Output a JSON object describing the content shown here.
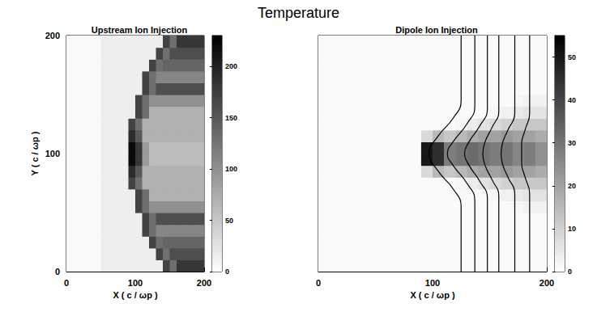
{
  "title": "Temperature",
  "chart_data": [
    {
      "type": "heatmap",
      "title": "Upstream Ion Injection",
      "x_label": "X ( c / ωp )",
      "y_label": "Y ( c / ωp )",
      "xlim": [
        0,
        200
      ],
      "ylim": [
        0,
        200
      ],
      "xticks": [
        0,
        100,
        200
      ],
      "yticks": [
        0,
        100,
        200
      ],
      "tick_labels": true,
      "x": [
        5,
        15,
        25,
        35,
        45,
        55,
        65,
        75,
        85,
        95,
        105,
        115,
        125,
        135,
        145,
        155,
        165,
        175,
        185,
        195
      ],
      "y": [
        5,
        15,
        25,
        35,
        45,
        55,
        65,
        75,
        85,
        95,
        105,
        115,
        125,
        135,
        145,
        155,
        165,
        175,
        185,
        195
      ],
      "cells": [
        [
          5,
          5,
          5,
          5,
          5,
          15,
          15,
          15,
          15,
          15,
          15,
          15,
          15,
          15,
          170,
          130,
          180,
          180,
          180,
          180
        ],
        [
          5,
          5,
          5,
          5,
          5,
          15,
          15,
          15,
          15,
          15,
          15,
          15,
          15,
          170,
          130,
          160,
          160,
          160,
          160,
          160
        ],
        [
          5,
          5,
          5,
          5,
          5,
          15,
          15,
          15,
          15,
          15,
          15,
          15,
          170,
          130,
          140,
          140,
          140,
          140,
          140,
          140
        ],
        [
          5,
          5,
          5,
          5,
          5,
          15,
          15,
          15,
          15,
          15,
          15,
          170,
          130,
          110,
          110,
          110,
          110,
          110,
          110,
          110
        ],
        [
          5,
          5,
          5,
          5,
          5,
          15,
          15,
          15,
          15,
          15,
          15,
          170,
          130,
          160,
          160,
          160,
          160,
          160,
          160,
          160
        ],
        [
          5,
          5,
          5,
          5,
          5,
          15,
          15,
          15,
          15,
          15,
          170,
          130,
          100,
          100,
          100,
          100,
          100,
          100,
          100,
          100
        ],
        [
          5,
          5,
          5,
          5,
          5,
          15,
          15,
          15,
          15,
          15,
          170,
          130,
          70,
          70,
          70,
          70,
          70,
          70,
          70,
          70
        ],
        [
          5,
          5,
          5,
          5,
          5,
          15,
          15,
          15,
          15,
          170,
          130,
          70,
          70,
          70,
          70,
          70,
          70,
          70,
          70,
          70
        ],
        [
          5,
          5,
          5,
          5,
          5,
          15,
          15,
          15,
          15,
          190,
          150,
          70,
          70,
          70,
          70,
          70,
          70,
          70,
          70,
          70
        ],
        [
          5,
          5,
          5,
          5,
          5,
          15,
          15,
          15,
          15,
          220,
          180,
          90,
          60,
          60,
          60,
          60,
          60,
          60,
          60,
          60
        ],
        [
          5,
          5,
          5,
          5,
          5,
          15,
          15,
          15,
          15,
          220,
          180,
          90,
          60,
          60,
          60,
          60,
          60,
          60,
          60,
          60
        ],
        [
          5,
          5,
          5,
          5,
          5,
          15,
          15,
          15,
          15,
          190,
          150,
          70,
          70,
          70,
          70,
          70,
          70,
          70,
          70,
          70
        ],
        [
          5,
          5,
          5,
          5,
          5,
          15,
          15,
          15,
          15,
          170,
          130,
          70,
          70,
          70,
          70,
          70,
          70,
          70,
          70,
          70
        ],
        [
          5,
          5,
          5,
          5,
          5,
          15,
          15,
          15,
          15,
          15,
          170,
          130,
          70,
          70,
          70,
          70,
          70,
          70,
          70,
          70
        ],
        [
          5,
          5,
          5,
          5,
          5,
          15,
          15,
          15,
          15,
          15,
          170,
          130,
          100,
          100,
          100,
          100,
          100,
          100,
          100,
          100
        ],
        [
          5,
          5,
          5,
          5,
          5,
          15,
          15,
          15,
          15,
          15,
          15,
          170,
          130,
          160,
          160,
          160,
          160,
          160,
          160,
          160
        ],
        [
          5,
          5,
          5,
          5,
          5,
          15,
          15,
          15,
          15,
          15,
          15,
          170,
          130,
          110,
          110,
          110,
          110,
          110,
          110,
          110
        ],
        [
          5,
          5,
          5,
          5,
          5,
          15,
          15,
          15,
          15,
          15,
          15,
          15,
          170,
          130,
          140,
          140,
          140,
          140,
          140,
          140
        ],
        [
          5,
          5,
          5,
          5,
          5,
          15,
          15,
          15,
          15,
          15,
          15,
          15,
          15,
          170,
          130,
          160,
          160,
          160,
          160,
          160
        ],
        [
          5,
          5,
          5,
          5,
          5,
          15,
          15,
          15,
          15,
          15,
          15,
          15,
          15,
          15,
          170,
          130,
          180,
          180,
          180,
          180
        ]
      ],
      "color_range": [
        0,
        230
      ],
      "color_ticks": [
        0,
        50,
        100,
        150,
        200
      ]
    },
    {
      "type": "heatmap",
      "title": "Dipole Ion Injection",
      "x_label": "X ( c / ωp )",
      "xlim": [
        0,
        200
      ],
      "ylim": [
        0,
        200
      ],
      "xticks": [
        0,
        100,
        200
      ],
      "yticks": [
        0,
        100,
        200
      ],
      "tick_labels": "x",
      "x": [
        5,
        15,
        25,
        35,
        45,
        55,
        65,
        75,
        85,
        95,
        105,
        115,
        125,
        135,
        145,
        155,
        165,
        175,
        185,
        195
      ],
      "y": [
        5,
        15,
        25,
        35,
        45,
        55,
        65,
        75,
        85,
        95,
        105,
        115,
        125,
        135,
        145,
        155,
        165,
        175,
        185,
        195
      ],
      "cells": [
        [
          1,
          1,
          1,
          1,
          1,
          1,
          1,
          1,
          1,
          1,
          1,
          1,
          1,
          1,
          1,
          1,
          1,
          1,
          1,
          1
        ],
        [
          1,
          1,
          1,
          1,
          1,
          1,
          1,
          1,
          1,
          1,
          1,
          1,
          1,
          1,
          1,
          1,
          1,
          1,
          1,
          1
        ],
        [
          1,
          1,
          1,
          1,
          1,
          1,
          1,
          1,
          1,
          1,
          1,
          1,
          1,
          1,
          1,
          1,
          1,
          1,
          1,
          1
        ],
        [
          1,
          1,
          1,
          1,
          1,
          1,
          1,
          1,
          1,
          1,
          1,
          1,
          1,
          1,
          1,
          1,
          1,
          1,
          1,
          1
        ],
        [
          1,
          1,
          1,
          1,
          1,
          1,
          1,
          1,
          1,
          1,
          1,
          1,
          1,
          1,
          1,
          1,
          1,
          1,
          1,
          1
        ],
        [
          1,
          1,
          1,
          1,
          1,
          1,
          1,
          1,
          1,
          1,
          1,
          1,
          1,
          1,
          1,
          1,
          1,
          2,
          3,
          3
        ],
        [
          1,
          1,
          1,
          1,
          1,
          1,
          1,
          1,
          1,
          1,
          1,
          1,
          1,
          1,
          1,
          2,
          3,
          5,
          6,
          6
        ],
        [
          1,
          1,
          1,
          1,
          1,
          1,
          1,
          1,
          1,
          1,
          1,
          1,
          2,
          4,
          6,
          8,
          10,
          12,
          12,
          12
        ],
        [
          1,
          1,
          1,
          1,
          1,
          1,
          1,
          1,
          1,
          8,
          15,
          12,
          15,
          18,
          20,
          20,
          22,
          20,
          20,
          18
        ],
        [
          1,
          1,
          1,
          1,
          1,
          1,
          1,
          1,
          1,
          50,
          45,
          28,
          30,
          32,
          30,
          28,
          30,
          26,
          28,
          24
        ],
        [
          1,
          1,
          1,
          1,
          1,
          1,
          1,
          1,
          1,
          50,
          45,
          28,
          30,
          32,
          30,
          28,
          30,
          26,
          28,
          24
        ],
        [
          1,
          1,
          1,
          1,
          1,
          1,
          1,
          1,
          1,
          8,
          15,
          12,
          15,
          18,
          20,
          20,
          22,
          20,
          20,
          18
        ],
        [
          1,
          1,
          1,
          1,
          1,
          1,
          1,
          1,
          1,
          1,
          1,
          1,
          2,
          4,
          6,
          8,
          10,
          12,
          12,
          12
        ],
        [
          1,
          1,
          1,
          1,
          1,
          1,
          1,
          1,
          1,
          1,
          1,
          1,
          1,
          1,
          1,
          2,
          3,
          5,
          6,
          6
        ],
        [
          1,
          1,
          1,
          1,
          1,
          1,
          1,
          1,
          1,
          1,
          1,
          1,
          1,
          1,
          1,
          1,
          1,
          2,
          3,
          3
        ],
        [
          1,
          1,
          1,
          1,
          1,
          1,
          1,
          1,
          1,
          1,
          1,
          1,
          1,
          1,
          1,
          1,
          1,
          1,
          1,
          1
        ],
        [
          1,
          1,
          1,
          1,
          1,
          1,
          1,
          1,
          1,
          1,
          1,
          1,
          1,
          1,
          1,
          1,
          1,
          1,
          1,
          1
        ],
        [
          1,
          1,
          1,
          1,
          1,
          1,
          1,
          1,
          1,
          1,
          1,
          1,
          1,
          1,
          1,
          1,
          1,
          1,
          1,
          1
        ],
        [
          1,
          1,
          1,
          1,
          1,
          1,
          1,
          1,
          1,
          1,
          1,
          1,
          1,
          1,
          1,
          1,
          1,
          1,
          1,
          1
        ],
        [
          1,
          1,
          1,
          1,
          1,
          1,
          1,
          1,
          1,
          1,
          1,
          1,
          1,
          1,
          1,
          1,
          1,
          1,
          1,
          1
        ]
      ],
      "color_range": [
        0,
        55
      ],
      "color_ticks": [
        0,
        10,
        20,
        30,
        40,
        50
      ],
      "contours": [
        [
          [
            125,
            0
          ],
          [
            125,
            55
          ],
          [
            118,
            70
          ],
          [
            105,
            85
          ],
          [
            97,
            100
          ],
          [
            105,
            115
          ],
          [
            118,
            130
          ],
          [
            125,
            145
          ],
          [
            125,
            200
          ]
        ],
        [
          [
            137,
            0
          ],
          [
            137,
            60
          ],
          [
            130,
            75
          ],
          [
            118,
            90
          ],
          [
            113,
            100
          ],
          [
            118,
            110
          ],
          [
            130,
            125
          ],
          [
            137,
            140
          ],
          [
            137,
            200
          ]
        ],
        [
          [
            148,
            0
          ],
          [
            148,
            62
          ],
          [
            141,
            77
          ],
          [
            132,
            90
          ],
          [
            128,
            100
          ],
          [
            132,
            110
          ],
          [
            141,
            123
          ],
          [
            148,
            138
          ],
          [
            148,
            200
          ]
        ],
        [
          [
            158,
            0
          ],
          [
            158,
            64
          ],
          [
            152,
            78
          ],
          [
            146,
            90
          ],
          [
            144,
            100
          ],
          [
            146,
            110
          ],
          [
            152,
            122
          ],
          [
            158,
            136
          ],
          [
            158,
            200
          ]
        ],
        [
          [
            172,
            0
          ],
          [
            172,
            66
          ],
          [
            166,
            80
          ],
          [
            161,
            92
          ],
          [
            160,
            100
          ],
          [
            161,
            108
          ],
          [
            166,
            120
          ],
          [
            172,
            134
          ],
          [
            172,
            200
          ]
        ],
        [
          [
            185,
            0
          ],
          [
            185,
            66
          ],
          [
            181,
            80
          ],
          [
            178,
            92
          ],
          [
            178,
            100
          ],
          [
            178,
            108
          ],
          [
            181,
            120
          ],
          [
            185,
            134
          ],
          [
            185,
            200
          ]
        ]
      ]
    }
  ]
}
